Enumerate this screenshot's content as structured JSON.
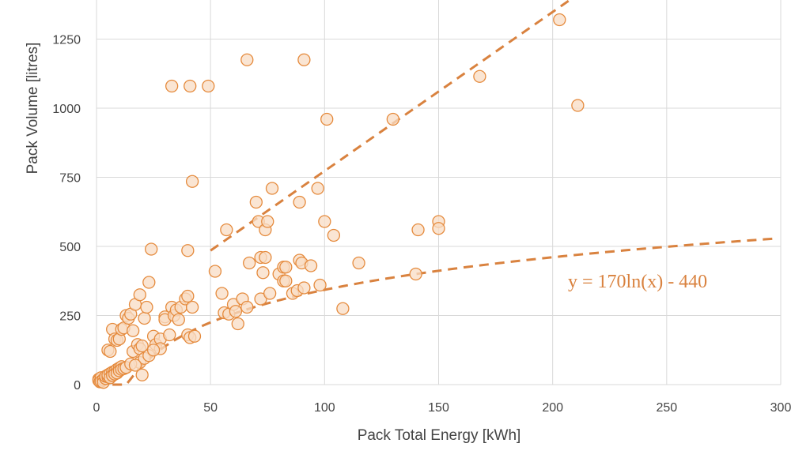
{
  "chart_data": {
    "type": "scatter",
    "xlabel": "Pack Total Energy [kWh]",
    "ylabel": "Pack Volume [litres]",
    "xlim": [
      0,
      300
    ],
    "ylim": [
      0,
      1400
    ],
    "xticks": [
      "0",
      "50",
      "100",
      "150",
      "200",
      "250",
      "300"
    ],
    "yticks": [
      "0",
      "250",
      "500",
      "750",
      "1000",
      "1250"
    ],
    "grid": true,
    "marker_color": "#E58A3C",
    "marker_fill": "#F8DCC4",
    "trendline_color": "#D9823F",
    "annotation": "y = 170ln(x) - 440",
    "points": [
      [
        1,
        20
      ],
      [
        1,
        15
      ],
      [
        1.5,
        10
      ],
      [
        2,
        25
      ],
      [
        2,
        12
      ],
      [
        3,
        18
      ],
      [
        3,
        8
      ],
      [
        4,
        22
      ],
      [
        4,
        30
      ],
      [
        5,
        28
      ],
      [
        5,
        35
      ],
      [
        6,
        40
      ],
      [
        6,
        25
      ],
      [
        7,
        45
      ],
      [
        7,
        33
      ],
      [
        8,
        48
      ],
      [
        8,
        38
      ],
      [
        9,
        55
      ],
      [
        9,
        42
      ],
      [
        10,
        60
      ],
      [
        10,
        50
      ],
      [
        11,
        65
      ],
      [
        11,
        55
      ],
      [
        12,
        58
      ],
      [
        13,
        62
      ],
      [
        5,
        125
      ],
      [
        6,
        120
      ],
      [
        7,
        200
      ],
      [
        8,
        165
      ],
      [
        9,
        160
      ],
      [
        10,
        165
      ],
      [
        11,
        200
      ],
      [
        12,
        205
      ],
      [
        13,
        250
      ],
      [
        14,
        240
      ],
      [
        15,
        255
      ],
      [
        16,
        120
      ],
      [
        16,
        195
      ],
      [
        17,
        290
      ],
      [
        18,
        145
      ],
      [
        19,
        130
      ],
      [
        19,
        325
      ],
      [
        20,
        140
      ],
      [
        20,
        35
      ],
      [
        21,
        240
      ],
      [
        22,
        280
      ],
      [
        23,
        370
      ],
      [
        24,
        490
      ],
      [
        25,
        175
      ],
      [
        26,
        145
      ],
      [
        28,
        165
      ],
      [
        28,
        130
      ],
      [
        30,
        245
      ],
      [
        30,
        235
      ],
      [
        32,
        180
      ],
      [
        33,
        280
      ],
      [
        34,
        250
      ],
      [
        35,
        270
      ],
      [
        36,
        235
      ],
      [
        37,
        280
      ],
      [
        39,
        310
      ],
      [
        40,
        320
      ],
      [
        40,
        180
      ],
      [
        41,
        170
      ],
      [
        42,
        280
      ],
      [
        43,
        175
      ],
      [
        19,
        80
      ],
      [
        21,
        95
      ],
      [
        23,
        105
      ],
      [
        25,
        125
      ],
      [
        15,
        75
      ],
      [
        17,
        70
      ],
      [
        33,
        1080
      ],
      [
        41,
        1080
      ],
      [
        49,
        1080
      ],
      [
        42,
        735
      ],
      [
        40,
        485
      ],
      [
        52,
        410
      ],
      [
        55,
        330
      ],
      [
        56,
        260
      ],
      [
        57,
        560
      ],
      [
        58,
        255
      ],
      [
        60,
        290
      ],
      [
        61,
        265
      ],
      [
        62,
        220
      ],
      [
        64,
        310
      ],
      [
        66,
        280
      ],
      [
        67,
        440
      ],
      [
        66,
        1175
      ],
      [
        70,
        660
      ],
      [
        71,
        590
      ],
      [
        72,
        460
      ],
      [
        72,
        310
      ],
      [
        73,
        405
      ],
      [
        74,
        560
      ],
      [
        74,
        460
      ],
      [
        75,
        590
      ],
      [
        76,
        330
      ],
      [
        77,
        710
      ],
      [
        80,
        400
      ],
      [
        82,
        425
      ],
      [
        82,
        375
      ],
      [
        83,
        425
      ],
      [
        83,
        375
      ],
      [
        86,
        330
      ],
      [
        88,
        340
      ],
      [
        89,
        660
      ],
      [
        89,
        450
      ],
      [
        90,
        440
      ],
      [
        91,
        350
      ],
      [
        91,
        1175
      ],
      [
        94,
        430
      ],
      [
        97,
        710
      ],
      [
        98,
        360
      ],
      [
        100,
        590
      ],
      [
        101,
        960
      ],
      [
        104,
        540
      ],
      [
        108,
        275
      ],
      [
        115,
        440
      ],
      [
        130,
        960
      ],
      [
        140,
        400
      ],
      [
        141,
        560
      ],
      [
        150,
        590
      ],
      [
        150,
        565
      ],
      [
        168,
        1115
      ],
      [
        203,
        1320
      ],
      [
        211,
        1010
      ]
    ]
  }
}
